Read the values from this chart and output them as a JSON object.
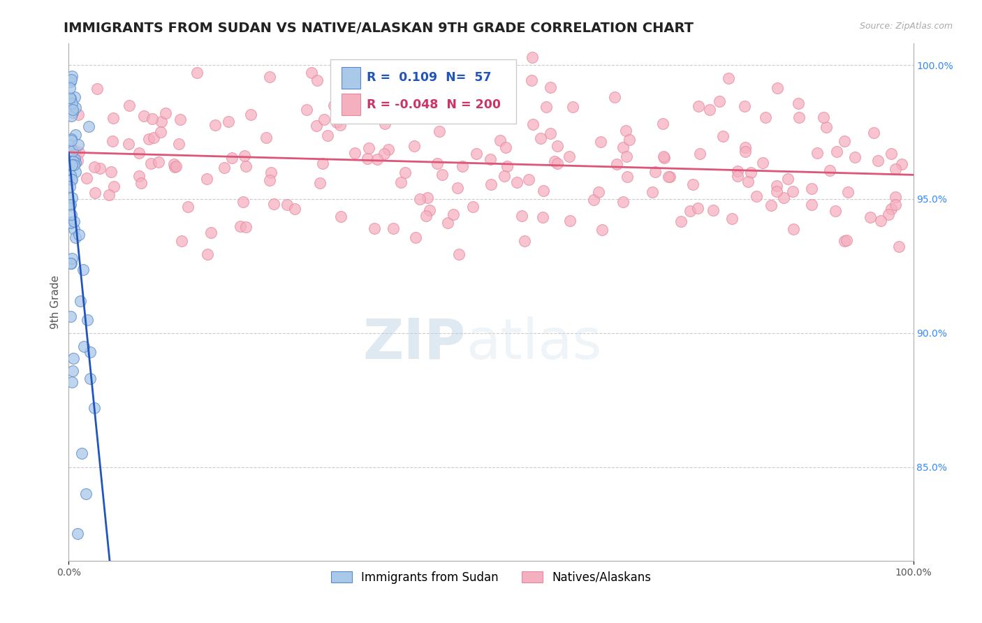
{
  "title": "IMMIGRANTS FROM SUDAN VS NATIVE/ALASKAN 9TH GRADE CORRELATION CHART",
  "source_text": "Source: ZipAtlas.com",
  "ylabel": "9th Grade",
  "x_min": 0.0,
  "x_max": 1.0,
  "y_min": 0.815,
  "y_max": 1.008,
  "y_ticks": [
    0.85,
    0.9,
    0.95,
    1.0
  ],
  "y_tick_labels": [
    "85.0%",
    "90.0%",
    "95.0%",
    "100.0%"
  ],
  "blue_R": 0.109,
  "blue_N": 57,
  "pink_R": -0.048,
  "pink_N": 200,
  "blue_color": "#aac8e8",
  "pink_color": "#f5b0c0",
  "blue_edge_color": "#5588cc",
  "pink_edge_color": "#e888a0",
  "blue_trend_color": "#2255bb",
  "pink_trend_color": "#dd5577",
  "blue_label": "Immigrants from Sudan",
  "pink_label": "Natives/Alaskans",
  "background_color": "#ffffff",
  "grid_color": "#cccccc",
  "title_color": "#222222",
  "title_fontsize": 14,
  "axis_label_fontsize": 11,
  "tick_fontsize": 10,
  "watermark_zip_color": "#b8cfe0",
  "watermark_atlas_color": "#c8dce8"
}
